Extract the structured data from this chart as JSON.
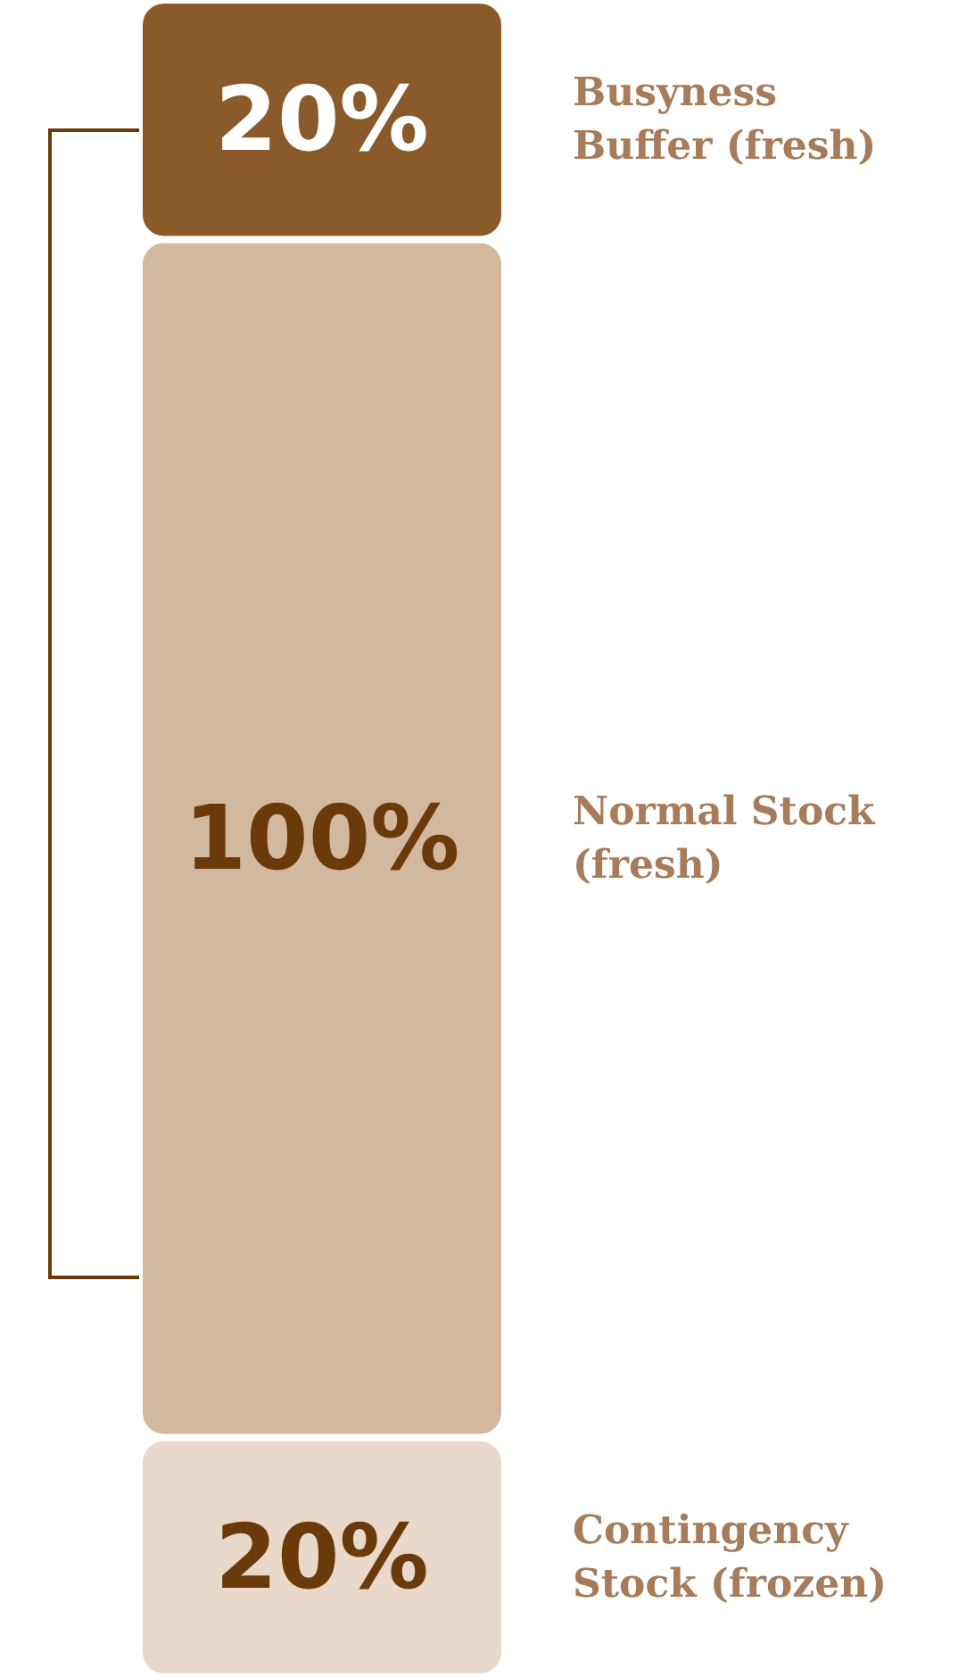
{
  "chart_data": {
    "type": "bar",
    "stacked": true,
    "categories": [
      null
    ],
    "legend": false,
    "grid": false,
    "tick_labels": false,
    "series": [
      {
        "name": "Contingency Stock (frozen)",
        "color": "#e8d9ca",
        "values": [
          20
        ],
        "value_labels": [
          "20%"
        ]
      },
      {
        "name": "Normal Stock (fresh)",
        "color": "#d3b8a0",
        "values": [
          100
        ],
        "value_labels": [
          "100%"
        ]
      },
      {
        "name": "Busyness Buffer (fresh)",
        "color": "#8b5a2b",
        "values": [
          20
        ],
        "value_labels": [
          "20%"
        ]
      }
    ]
  }
}
